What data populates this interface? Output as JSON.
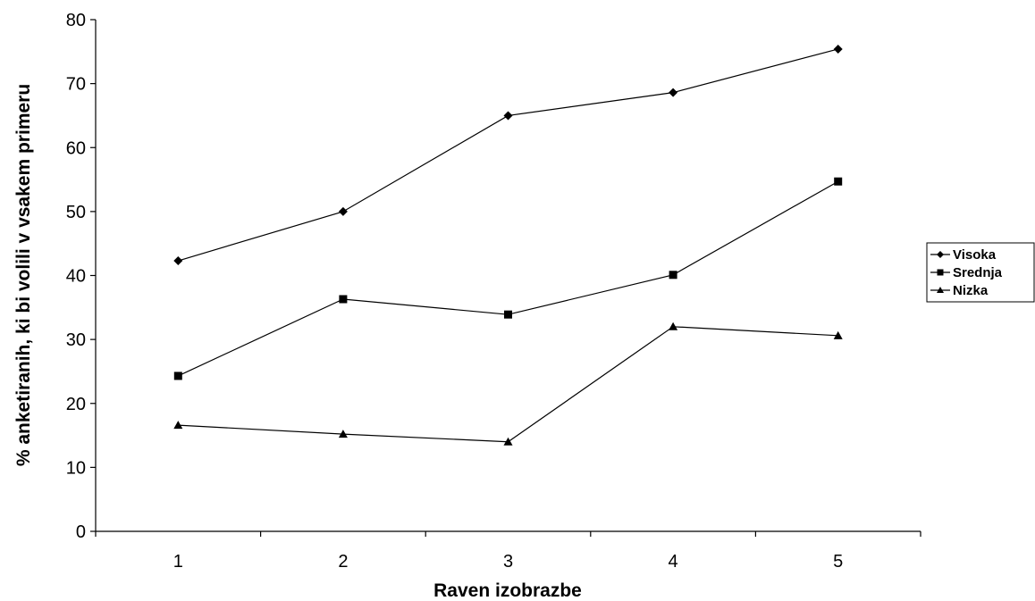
{
  "chart_data": {
    "type": "line",
    "title": "",
    "xlabel": "Raven izobrazbe",
    "ylabel": "% anketiranih, ki bi volili v vsakem primeru",
    "x": [
      1,
      2,
      3,
      4,
      5
    ],
    "xlim": [
      0.5,
      5.5
    ],
    "ylim": [
      0,
      80
    ],
    "yticks": [
      0,
      10,
      20,
      30,
      40,
      50,
      60,
      70,
      80
    ],
    "grid": false,
    "legend_position": "right",
    "series": [
      {
        "name": "Visoka",
        "marker": "diamond",
        "color": "#000000",
        "values": [
          42.3,
          50.0,
          65.0,
          68.6,
          75.4
        ]
      },
      {
        "name": "Srednja",
        "marker": "square",
        "color": "#000000",
        "values": [
          24.3,
          36.3,
          33.9,
          40.1,
          54.7
        ]
      },
      {
        "name": "Nizka",
        "marker": "triangle",
        "color": "#000000",
        "values": [
          16.6,
          15.2,
          14.0,
          32.0,
          30.6
        ]
      }
    ]
  }
}
